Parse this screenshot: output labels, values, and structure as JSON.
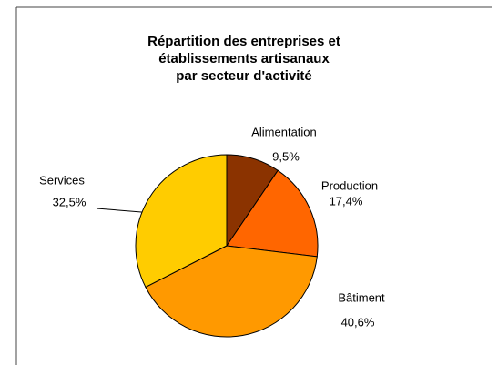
{
  "chart_data": {
    "type": "pie",
    "title": [
      "Répartition des entreprises et",
      "établissements artisanaux",
      "par secteur d'activité"
    ],
    "categories": [
      "Alimentation",
      "Production",
      "Bâtiment",
      "Services"
    ],
    "values": [
      9.5,
      17.4,
      40.6,
      32.5
    ],
    "value_labels": [
      "9,5%",
      "17,4%",
      "40,6%",
      "32,5%"
    ],
    "colors": [
      "#8b3300",
      "#ff6600",
      "#ff9900",
      "#ffcc00"
    ]
  }
}
